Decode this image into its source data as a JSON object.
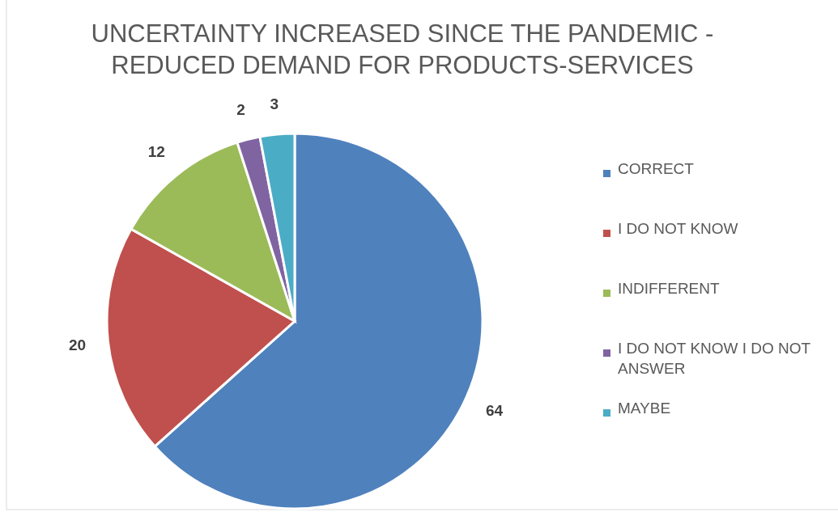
{
  "chart_data": {
    "type": "pie",
    "title": "UNCERTAINTY INCREASED SINCE THE PANDEMIC - REDUCED DEMAND FOR PRODUCTS-SERVICES",
    "categories": [
      "CORRECT",
      "I DO NOT KNOW",
      "INDIFFERENT",
      "I DO NOT KNOW I DO NOT ANSWER",
      "MAYBE"
    ],
    "values": [
      64,
      20,
      12,
      2,
      3
    ],
    "colors": [
      "#4f81bd",
      "#c0504d",
      "#9bbb59",
      "#8064a2",
      "#4bacc6"
    ],
    "data_labels": true,
    "legend": "right"
  }
}
